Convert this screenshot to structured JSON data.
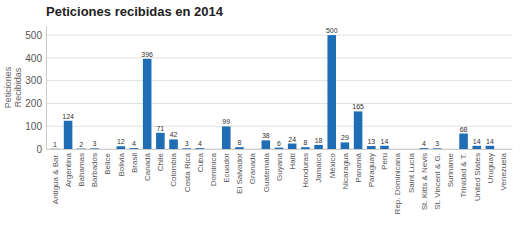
{
  "chart_data": {
    "type": "bar",
    "title": "Peticiones recibidas en 2014",
    "ylabel": "Peticiones\nRecibidas",
    "categories": [
      "Antigua & Bar.",
      "Argentina",
      "Bahamas",
      "Barbados",
      "Belice",
      "Bolivia",
      "Brasil",
      "Canadá",
      "Chile",
      "Colombia",
      "Costa Rica",
      "Cuba",
      "Dominica",
      "Ecuador",
      "El Salvador",
      "Granada",
      "Guatemala",
      "Guyana",
      "Haití",
      "Honduras",
      "Jamaica",
      "México",
      "Nicaragua",
      "Panamá",
      "Paraguay",
      "Perú",
      "Rep. Dominicana",
      "Saint Lucía",
      "St. Kitts & Nevis",
      "St. Vincent & G.",
      "Suriname",
      "Trinidad & T.",
      "United States",
      "Uruguay",
      "Venezuela"
    ],
    "values": [
      1,
      124,
      2,
      3,
      0,
      12,
      4,
      396,
      71,
      42,
      3,
      4,
      0,
      99,
      8,
      0,
      38,
      6,
      24,
      8,
      18,
      500,
      29,
      165,
      13,
      14,
      0,
      0,
      4,
      3,
      0,
      68,
      14,
      14,
      0
    ],
    "value_labels": [
      "1",
      "124",
      "2",
      "3",
      null,
      "12",
      "4",
      "396",
      "71",
      "42",
      "3",
      "4",
      null,
      "99",
      "8",
      null,
      "38",
      "6",
      "24",
      "8",
      "18",
      "500",
      "29",
      "165",
      "13",
      "14",
      null,
      null,
      "4",
      "3",
      null,
      "68",
      "14",
      "14",
      null
    ],
    "color": "#1f6eb5",
    "ylim": [
      0,
      540
    ],
    "yticks": [
      0,
      100,
      200,
      300,
      400,
      500
    ],
    "grid": true,
    "data_labels": true
  }
}
